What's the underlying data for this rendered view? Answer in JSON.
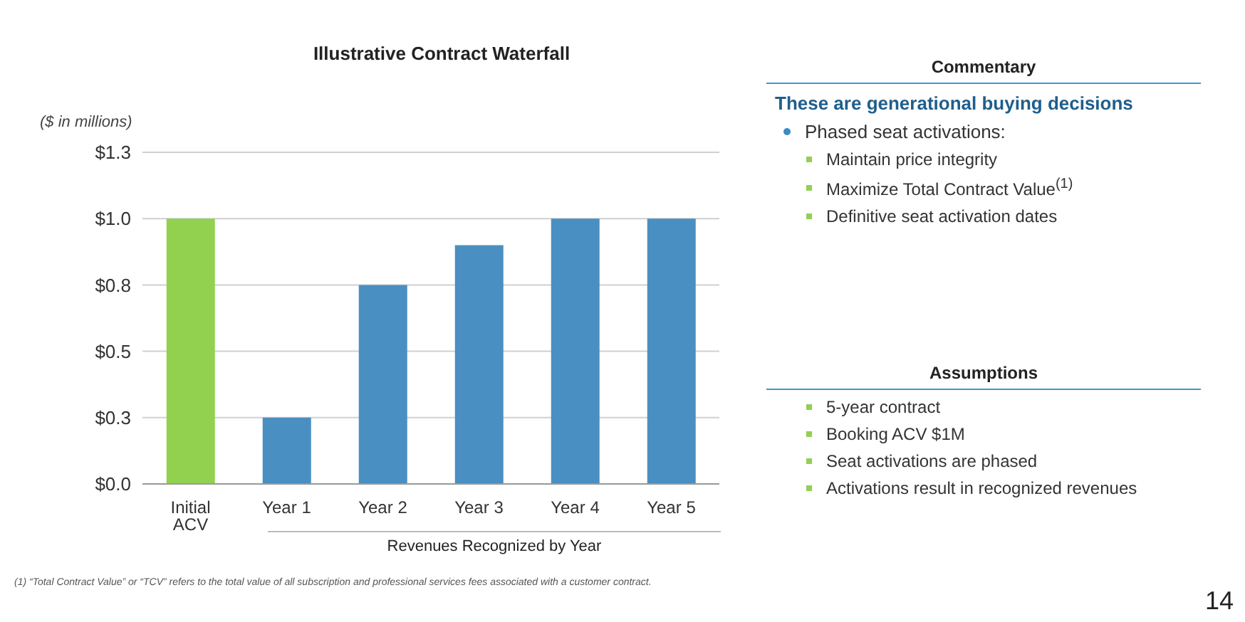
{
  "chart_data": [
    {
      "type": "bar",
      "title": "Illustrative Contract Waterfall",
      "ylabel": "($ in millions)",
      "xlabel": "Revenues Recognized by Year",
      "categories": [
        "Initial ACV",
        "Year 1",
        "Year 2",
        "Year 3",
        "Year 4",
        "Year 5"
      ],
      "values": [
        1.0,
        0.25,
        0.75,
        0.9,
        1.0,
        1.0
      ],
      "colors": [
        "#92d050",
        "#4a8fc1",
        "#4a8fc1",
        "#4a8fc1",
        "#4a8fc1",
        "#4a8fc1"
      ],
      "ylim": [
        0,
        1.25
      ],
      "yticks": [
        {
          "value": 0,
          "label": "$0.0"
        },
        {
          "value": 0.25,
          "label": "$0.3"
        },
        {
          "value": 0.5,
          "label": "$0.5"
        },
        {
          "value": 0.75,
          "label": "$0.8"
        },
        {
          "value": 1.0,
          "label": "$1.0"
        },
        {
          "value": 1.25,
          "label": "$1.3"
        }
      ],
      "grid": "y",
      "annotations": [
        "(1)  “Total Contract Value” or “TCV” refers to the total value of all subscription and professional services fees associated with a customer contract.",
        "14"
      ]
    },
    {
      "type": "other",
      "title": "Commentary",
      "subtitle": "These are generational buying decisions",
      "annotations": [
        "Phased seat activations:",
        "Maintain price integrity",
        "Maximize Total Contract Value$^{(1)}$",
        "Definitive seat activation dates"
      ]
    },
    {
      "type": "other",
      "title": "Assumptions",
      "annotations": [
        "5-year contract",
        "Booking ACV $1M",
        "Seat activations are phased",
        "Activations result in recognized revenues"
      ]
    }
  ]
}
